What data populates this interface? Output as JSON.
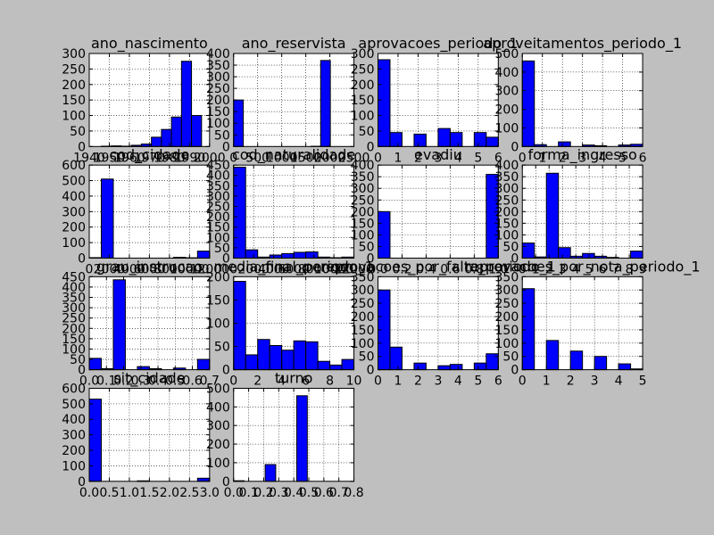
{
  "chart_data": [
    {
      "type": "histogram",
      "title": "ano_nascimento",
      "bins": [
        1946,
        1951,
        1956,
        1961,
        1966,
        1971,
        1976,
        1981,
        1986,
        1991,
        1996
      ],
      "values": [
        1,
        2,
        1,
        4,
        8,
        30,
        55,
        95,
        275,
        100
      ],
      "color": "#0000ff",
      "xlim": [
        1940,
        2000
      ],
      "xticks": [
        1940,
        1950,
        1960,
        1970,
        1980,
        1990,
        2000
      ],
      "ylim": [
        0,
        300
      ],
      "yticks": [
        0,
        50,
        100,
        150,
        200,
        250,
        300
      ],
      "grid": true
    },
    {
      "type": "histogram",
      "title": "ano_reservista",
      "bins": [
        0,
        201,
        402,
        603,
        804,
        1005,
        1206,
        1407,
        1608,
        1809,
        2010
      ],
      "values": [
        200,
        0,
        0,
        0,
        0,
        0,
        0,
        0,
        1,
        370
      ],
      "color": "#0000ff",
      "xlim": [
        0,
        2500
      ],
      "xticks": [
        0,
        500,
        1000,
        1500,
        2000,
        2500
      ],
      "ylim": [
        0,
        400
      ],
      "yticks": [
        0,
        50,
        100,
        150,
        200,
        250,
        300,
        350,
        400
      ],
      "grid": true
    },
    {
      "type": "histogram",
      "title": "aprovacoes_periodo_1",
      "bins": [
        0,
        0.6,
        1.2,
        1.8,
        2.4,
        3.0,
        3.6,
        4.2,
        4.8,
        5.4,
        6
      ],
      "values": [
        280,
        45,
        0,
        40,
        0,
        58,
        45,
        0,
        45,
        30
      ],
      "color": "#0000ff",
      "xlim": [
        0,
        6
      ],
      "xticks": [
        0,
        1,
        2,
        3,
        4,
        5,
        6
      ],
      "ylim": [
        0,
        300
      ],
      "yticks": [
        0,
        50,
        100,
        150,
        200,
        250,
        300
      ],
      "grid": true
    },
    {
      "type": "histogram",
      "title": "aproveitamentos_periodo_1",
      "bins": [
        0,
        0.6,
        1.2,
        1.8,
        2.4,
        3.0,
        3.6,
        4.2,
        4.8,
        5.4,
        6
      ],
      "values": [
        460,
        10,
        0,
        25,
        0,
        8,
        4,
        0,
        8,
        12
      ],
      "color": "#0000ff",
      "xlim": [
        0,
        6
      ],
      "xticks": [
        0,
        1,
        2,
        3,
        4,
        5,
        6
      ],
      "ylim": [
        0,
        500
      ],
      "yticks": [
        0,
        100,
        200,
        300,
        400,
        500
      ],
      "grid": true
    },
    {
      "type": "histogram",
      "title": "cod_cidade",
      "bins": [
        0,
        1200,
        2400,
        3600,
        4800,
        6000,
        7200,
        8400,
        9600,
        10800,
        12000
      ],
      "values": [
        3,
        510,
        0,
        0,
        0,
        0,
        0,
        5,
        2,
        45
      ],
      "color": "#0000ff",
      "xlim": [
        0,
        12000
      ],
      "xticks": [
        0,
        2000,
        4000,
        6000,
        8000,
        10000,
        12000
      ],
      "ylim": [
        0,
        600
      ],
      "yticks": [
        0,
        100,
        200,
        300,
        400,
        500,
        600
      ],
      "grid": true
    },
    {
      "type": "histogram",
      "title": "cod_naturalidade",
      "bins": [
        0,
        1200,
        2400,
        3600,
        4800,
        6000,
        7200,
        8400,
        9600,
        10800,
        12000
      ],
      "values": [
        440,
        40,
        5,
        15,
        22,
        28,
        30,
        5,
        2,
        5
      ],
      "color": "#0000ff",
      "xlim": [
        0,
        12000
      ],
      "xticks": [
        0,
        2000,
        4000,
        6000,
        8000,
        10000,
        12000
      ],
      "ylim": [
        0,
        450
      ],
      "yticks": [
        0,
        50,
        100,
        150,
        200,
        250,
        300,
        350,
        400,
        450
      ],
      "grid": true
    },
    {
      "type": "histogram",
      "title": "evadiu",
      "bins": [
        0,
        0.1,
        0.2,
        0.3,
        0.4,
        0.5,
        0.6,
        0.7,
        0.8,
        0.9,
        1
      ],
      "values": [
        200,
        0,
        0,
        0,
        0,
        0,
        0,
        0,
        0,
        360
      ],
      "color": "#0000ff",
      "xlim": [
        0,
        1
      ],
      "xticks": [
        {
          "value": 0,
          "label": "0.0"
        },
        0.2,
        0.4,
        0.6,
        0.8,
        {
          "value": 1,
          "label": "1.0"
        }
      ],
      "ylim": [
        0,
        400
      ],
      "yticks": [
        0,
        50,
        100,
        150,
        200,
        250,
        300,
        350,
        400
      ],
      "grid": true
    },
    {
      "type": "histogram",
      "title": "forma_ingresso",
      "bins": [
        0,
        0.9,
        1.8,
        2.7,
        3.6,
        4.5,
        5.4,
        6.3,
        7.2,
        8.1,
        9
      ],
      "values": [
        65,
        5,
        365,
        45,
        8,
        20,
        8,
        3,
        0,
        30
      ],
      "color": "#0000ff",
      "xlim": [
        0,
        9
      ],
      "xticks": [
        0,
        1,
        2,
        3,
        4,
        5,
        6,
        7,
        8,
        9
      ],
      "ylim": [
        0,
        400
      ],
      "yticks": [
        0,
        50,
        100,
        150,
        200,
        250,
        300,
        350,
        400
      ],
      "grid": true
    },
    {
      "type": "histogram",
      "title": "grau_instrucao",
      "bins": [
        0,
        0.07,
        0.14,
        0.21,
        0.28,
        0.35,
        0.42,
        0.49,
        0.56,
        0.63,
        0.7
      ],
      "values": [
        55,
        5,
        435,
        0,
        15,
        5,
        0,
        8,
        0,
        50
      ],
      "color": "#0000ff",
      "xlim": [
        0,
        0.7
      ],
      "xticks": [
        {
          "value": 0,
          "label": "0.0"
        },
        0.1,
        0.2,
        0.3,
        0.4,
        0.5,
        0.6,
        0.7
      ],
      "ylim": [
        0,
        450
      ],
      "yticks": [
        0,
        50,
        100,
        150,
        200,
        250,
        300,
        350,
        400,
        450
      ],
      "grid": true
    },
    {
      "type": "histogram",
      "title": "media_final_periodo_1",
      "bins": [
        0,
        1,
        2,
        3,
        4,
        5,
        6,
        7,
        8,
        9,
        10
      ],
      "values": [
        190,
        32,
        65,
        52,
        42,
        62,
        60,
        18,
        10,
        22
      ],
      "color": "#0000ff",
      "xlim": [
        0,
        10
      ],
      "xticks": [
        0,
        2,
        4,
        6,
        8,
        10
      ],
      "ylim": [
        0,
        200
      ],
      "yticks": [
        0,
        50,
        100,
        150,
        200
      ],
      "grid": true
    },
    {
      "type": "histogram",
      "title": "reprovacoes_por_falta_periodo_1",
      "bins": [
        0,
        0.6,
        1.2,
        1.8,
        2.4,
        3.0,
        3.6,
        4.2,
        4.8,
        5.4,
        6
      ],
      "values": [
        300,
        85,
        0,
        25,
        0,
        15,
        20,
        0,
        25,
        60
      ],
      "color": "#0000ff",
      "xlim": [
        0,
        6
      ],
      "xticks": [
        0,
        1,
        2,
        3,
        4,
        5,
        6
      ],
      "ylim": [
        0,
        350
      ],
      "yticks": [
        0,
        50,
        100,
        150,
        200,
        250,
        300,
        350
      ],
      "grid": true
    },
    {
      "type": "histogram",
      "title": "reprovacoes_por_nota_periodo_1",
      "bins": [
        0,
        0.5,
        1,
        1.5,
        2,
        2.5,
        3,
        3.5,
        4,
        4.5,
        5
      ],
      "values": [
        305,
        0,
        110,
        0,
        70,
        0,
        50,
        0,
        22,
        3
      ],
      "color": "#0000ff",
      "xlim": [
        0,
        5
      ],
      "xticks": [
        0,
        1,
        2,
        3,
        4,
        5
      ],
      "ylim": [
        0,
        350
      ],
      "yticks": [
        0,
        50,
        100,
        150,
        200,
        250,
        300,
        350
      ],
      "grid": true
    },
    {
      "type": "histogram",
      "title": "sit_cidade",
      "bins": [
        0,
        0.3,
        0.6,
        0.9,
        1.2,
        1.5,
        1.8,
        2.1,
        2.4,
        2.7,
        3
      ],
      "values": [
        530,
        0,
        0,
        0,
        3,
        0,
        0,
        0,
        0,
        20
      ],
      "color": "#0000ff",
      "xlim": [
        0,
        3
      ],
      "xticks": [
        {
          "value": 0,
          "label": "0.0"
        },
        0.5,
        {
          "value": 1,
          "label": "1.0"
        },
        1.5,
        {
          "value": 2,
          "label": "2.0"
        },
        2.5,
        {
          "value": 3,
          "label": "3.0"
        }
      ],
      "ylim": [
        0,
        600
      ],
      "yticks": [
        0,
        100,
        200,
        300,
        400,
        500,
        600
      ],
      "grid": true
    },
    {
      "type": "histogram",
      "title": "turno",
      "bins": [
        0,
        0.07,
        0.14,
        0.21,
        0.28,
        0.35,
        0.42,
        0.49,
        0.56,
        0.63,
        0.7
      ],
      "values": [
        3,
        0,
        0,
        90,
        0,
        0,
        460,
        0,
        0,
        0
      ],
      "color": "#0000ff",
      "xlim": [
        0,
        0.8
      ],
      "xticks": [
        {
          "value": 0,
          "label": "0.0"
        },
        0.1,
        0.2,
        0.3,
        0.4,
        0.5,
        0.6,
        0.7,
        0.8
      ],
      "ylim": [
        0,
        500
      ],
      "yticks": [
        0,
        100,
        200,
        300,
        400,
        500
      ],
      "grid": true
    }
  ]
}
